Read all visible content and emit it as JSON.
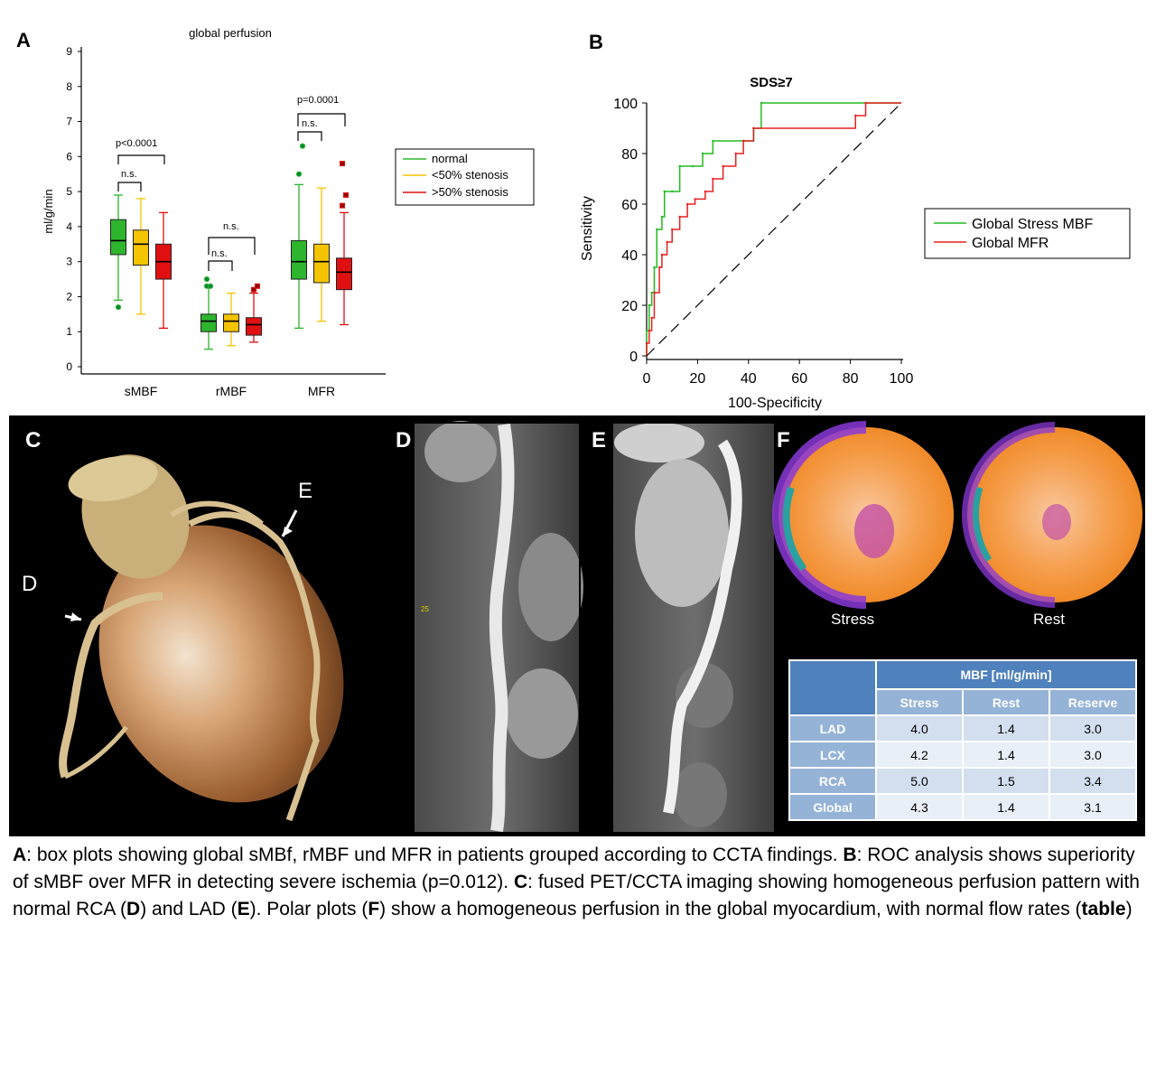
{
  "panel_letters": {
    "A": "A",
    "B": "B",
    "C": "C",
    "D": "D",
    "E": "E",
    "F": "F"
  },
  "chart_data": [
    {
      "type": "box",
      "title": "global perfusion",
      "ylabel": "ml/g/min",
      "ylim": [
        0,
        9
      ],
      "yticks": [
        "0",
        "1",
        "2",
        "3",
        "4",
        "5",
        "6",
        "7",
        "8",
        "9"
      ],
      "categories": [
        "sMBF",
        "rMBF",
        "MFR"
      ],
      "legend": {
        "placement": "right",
        "entries": [
          "normal",
          "<50% stenosis",
          ">50% stenosis"
        ]
      },
      "colors": {
        "normal": "#2db52d",
        "<50% stenosis": "#f5c400",
        ">50% stenosis": "#e01010"
      },
      "series": [
        {
          "name": "normal",
          "boxes": [
            {
              "min": 1.9,
              "q1": 3.2,
              "median": 3.6,
              "q3": 4.2,
              "max": 4.9,
              "outliers": [
                1.7
              ]
            },
            {
              "min": 0.5,
              "q1": 1.0,
              "median": 1.3,
              "q3": 1.5,
              "max": 2.3,
              "outliers": [
                2.3,
                2.3,
                2.5
              ]
            },
            {
              "min": 1.1,
              "q1": 2.5,
              "median": 3.0,
              "q3": 3.6,
              "max": 5.2,
              "outliers": [
                5.5,
                6.3
              ]
            }
          ]
        },
        {
          "name": "<50% stenosis",
          "boxes": [
            {
              "min": 1.5,
              "q1": 2.9,
              "median": 3.5,
              "q3": 3.9,
              "max": 4.8,
              "outliers": []
            },
            {
              "min": 0.6,
              "q1": 1.0,
              "median": 1.3,
              "q3": 1.5,
              "max": 2.1,
              "outliers": []
            },
            {
              "min": 1.3,
              "q1": 2.4,
              "median": 3.0,
              "q3": 3.5,
              "max": 5.1,
              "outliers": []
            }
          ]
        },
        {
          "name": ">50% stenosis",
          "boxes": [
            {
              "min": 1.1,
              "q1": 2.5,
              "median": 3.0,
              "q3": 3.5,
              "max": 4.4,
              "outliers": []
            },
            {
              "min": 0.7,
              "q1": 0.9,
              "median": 1.2,
              "q3": 1.4,
              "max": 2.1,
              "outliers": [
                2.2,
                2.3
              ]
            },
            {
              "min": 1.2,
              "q1": 2.2,
              "median": 2.7,
              "q3": 3.1,
              "max": 4.4,
              "outliers": [
                4.6,
                4.9,
                5.8
              ]
            }
          ]
        }
      ],
      "annotations": {
        "smbf_p": "p<0.0001",
        "smbf_ns": "n.s.",
        "rmbf_ns_outer": "n.s.",
        "rmbf_ns_inner": "n.s.",
        "mfr_p": "p=0.0001",
        "mfr_ns": "n.s."
      }
    },
    {
      "type": "line",
      "title": "SDS≥7",
      "xlabel": "100-Specificity",
      "ylabel": "Sensitivity",
      "xlim": [
        0,
        100
      ],
      "ylim": [
        0,
        100
      ],
      "xticks": [
        "0",
        "20",
        "40",
        "60",
        "80",
        "100"
      ],
      "yticks": [
        "0",
        "20",
        "40",
        "60",
        "80",
        "100"
      ],
      "legend": {
        "placement": "right",
        "entries": [
          "Global Stress MBF",
          "Global MFR"
        ]
      },
      "series": [
        {
          "name": "Global Stress MBF",
          "color": "#22bb22",
          "x": [
            0,
            0,
            1,
            1,
            2,
            2,
            3,
            3,
            4,
            4,
            6,
            6,
            7,
            7,
            10,
            10,
            13,
            13,
            18,
            18,
            22,
            22,
            26,
            26,
            38,
            38,
            42,
            42,
            45,
            45,
            100
          ],
          "y": [
            0,
            10,
            10,
            20,
            20,
            25,
            25,
            35,
            35,
            50,
            50,
            55,
            55,
            65,
            65,
            65,
            65,
            75,
            75,
            75,
            75,
            80,
            80,
            85,
            85,
            85,
            85,
            90,
            90,
            100,
            100
          ]
        },
        {
          "name": "Global MFR",
          "color": "#e82020",
          "x": [
            0,
            0,
            1,
            1,
            2,
            2,
            3,
            3,
            5,
            5,
            6,
            6,
            8,
            8,
            10,
            10,
            13,
            13,
            16,
            16,
            19,
            19,
            23,
            23,
            26,
            26,
            30,
            30,
            35,
            35,
            38,
            38,
            42,
            42,
            82,
            82,
            86,
            86,
            100
          ],
          "y": [
            0,
            5,
            5,
            10,
            10,
            15,
            15,
            25,
            25,
            35,
            35,
            40,
            40,
            45,
            45,
            50,
            50,
            55,
            55,
            60,
            60,
            62,
            62,
            65,
            65,
            70,
            70,
            75,
            75,
            80,
            80,
            85,
            85,
            90,
            90,
            95,
            95,
            100,
            100
          ]
        },
        {
          "name": "",
          "color": "#000000",
          "dash": true,
          "x": [
            0,
            100
          ],
          "y": [
            0,
            100
          ]
        }
      ]
    }
  ],
  "photo": {
    "label_d": "D",
    "label_e": "E",
    "scale_tag": "25",
    "stress_label": "Stress",
    "rest_label": "Rest"
  },
  "table": {
    "header": "MBF  [ml/g/min]",
    "columns": [
      "Stress",
      "Rest",
      "Reserve"
    ],
    "rows": [
      {
        "label": "LAD",
        "values": [
          "4.0",
          "1.4",
          "3.0"
        ]
      },
      {
        "label": "LCX",
        "values": [
          "4.2",
          "1.4",
          "3.0"
        ]
      },
      {
        "label": "RCA",
        "values": [
          "5.0",
          "1.5",
          "3.4"
        ]
      },
      {
        "label": "Global",
        "values": [
          "4.3",
          "1.4",
          "3.1"
        ]
      }
    ]
  },
  "caption": {
    "a": "A",
    "t1": ": box plots showing global sMBf, rMBF und MFR in patients grouped according to CCTA findings. ",
    "b": "B",
    "t2": ": ROC analysis shows superiority of sMBF over MFR in detecting severe ischemia (p=0.012). ",
    "c": "C",
    "t3": ": fused PET/CCTA imaging showing homogeneous perfusion pattern with normal RCA (",
    "d": "D",
    "t4": ") and LAD (",
    "e": "E",
    "t5": "). Polar plots (",
    "f": "F",
    "t6": ") show a homogeneous perfusion in the global myocardium, with normal flow rates (",
    "table": "table",
    "t7": ")"
  }
}
